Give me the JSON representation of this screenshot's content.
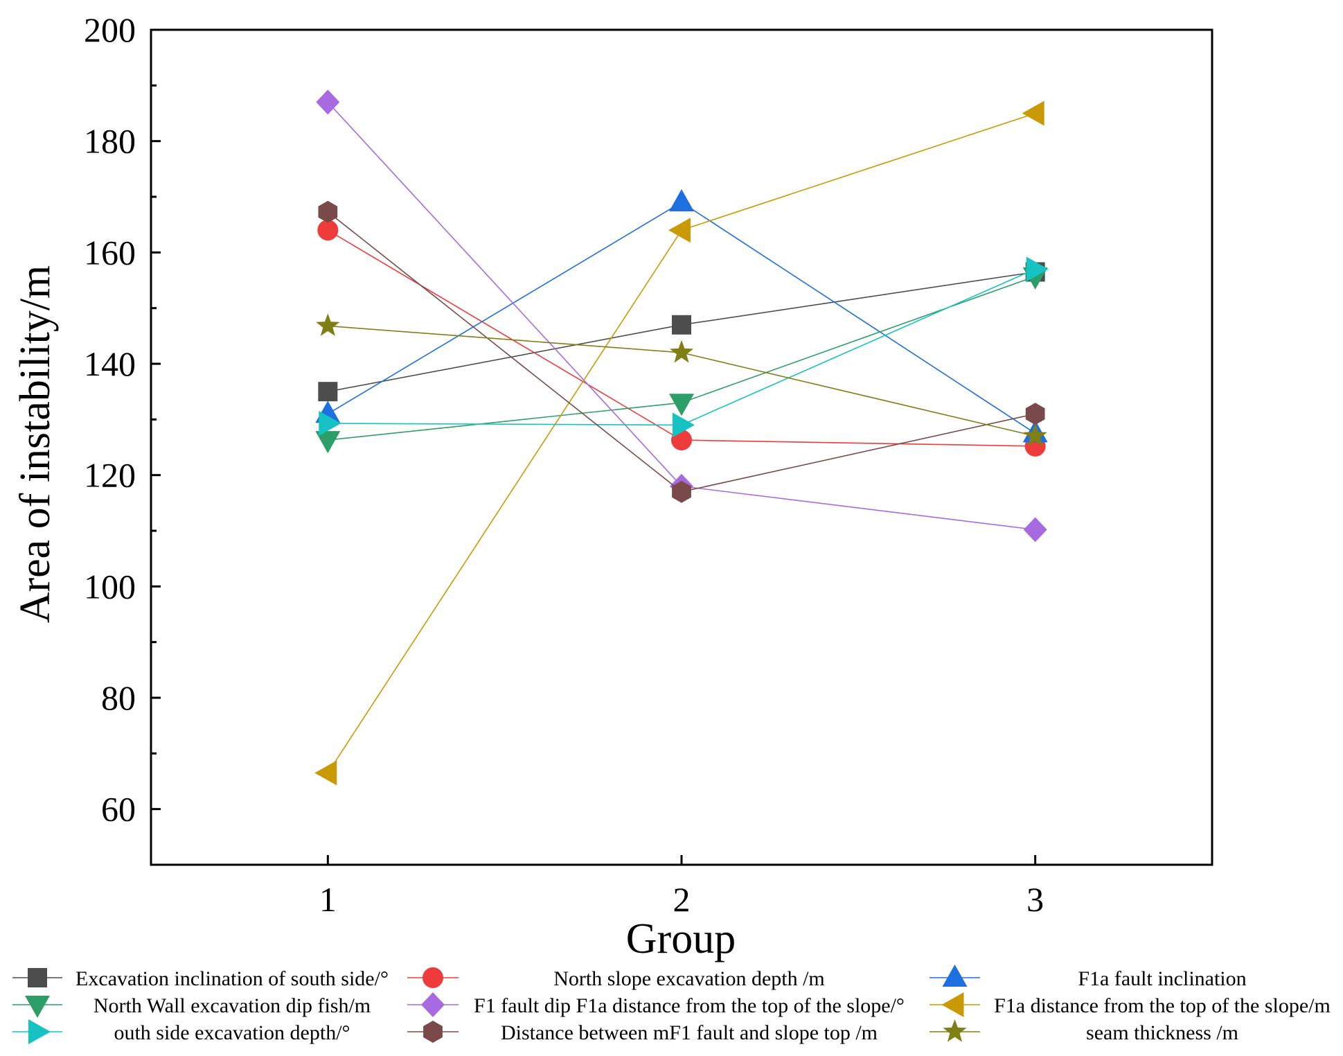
{
  "chart_data": {
    "type": "line",
    "title": "",
    "xlabel": "Group",
    "ylabel": "Area of instability/m",
    "x": [
      1,
      2,
      3
    ],
    "xlim": [
      0.5,
      3.5
    ],
    "ylim": [
      50,
      200
    ],
    "xticks": [
      1,
      2,
      3
    ],
    "yticks": [
      60,
      80,
      100,
      120,
      140,
      160,
      180,
      200
    ],
    "grid": false,
    "legend_position": "bottom",
    "series": [
      {
        "name": "Excavation inclination of south side/°",
        "marker": "square",
        "color": "#4d4d4d",
        "values": [
          135,
          147,
          156.5
        ]
      },
      {
        "name": "North slope excavation depth /m",
        "marker": "circle",
        "color": "#ee3b3b",
        "values": [
          164,
          126.3,
          125.2
        ]
      },
      {
        "name": "F1a fault inclination",
        "marker": "triangle-up",
        "color": "#1e6fe0",
        "values": [
          131,
          169,
          127.5
        ]
      },
      {
        "name": "North Wall excavation dip fish/m",
        "marker": "triangle-down",
        "color": "#2e9e68",
        "values": [
          126.3,
          133,
          155.7
        ]
      },
      {
        "name": "F1 fault dip F1a distance from the top of the slope/°",
        "marker": "diamond",
        "color": "#a86ae0",
        "values": [
          187,
          118,
          110.2
        ]
      },
      {
        "name": "F1a distance from the top of the slope/m",
        "marker": "triangle-left",
        "color": "#c99a06",
        "values": [
          66.5,
          164,
          185
        ]
      },
      {
        "name": "outh side excavation depth/°",
        "marker": "triangle-right",
        "color": "#17c2c2",
        "values": [
          129.3,
          129,
          157
        ]
      },
      {
        "name": "Distance between mF1 fault and slope top /m",
        "marker": "hexagon",
        "color": "#7a4a4a",
        "values": [
          167.3,
          117,
          131
        ]
      },
      {
        "name": "seam thickness /m",
        "marker": "star",
        "color": "#7f7f16",
        "values": [
          146.8,
          142,
          127
        ]
      }
    ]
  }
}
